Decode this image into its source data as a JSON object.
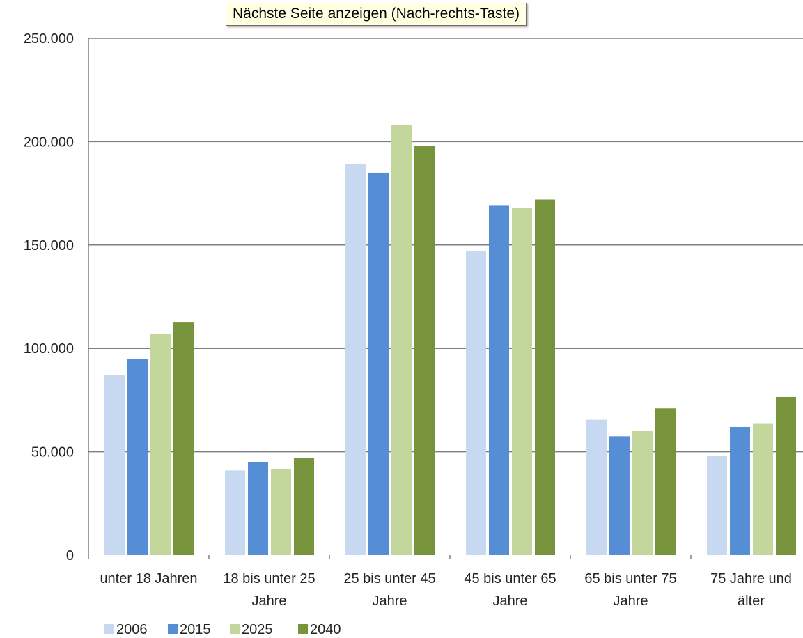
{
  "tooltip": {
    "text": "Nächste Seite anzeigen (Nach-rechts-Taste)"
  },
  "chart_data": {
    "type": "bar",
    "categories": [
      [
        "unter 18 Jahren"
      ],
      [
        "18 bis unter 25",
        "Jahre"
      ],
      [
        "25 bis unter 45",
        "Jahre"
      ],
      [
        "45 bis unter 65",
        "Jahre"
      ],
      [
        "65 bis unter 75",
        "Jahre"
      ],
      [
        "75 Jahre und",
        "älter"
      ]
    ],
    "series": [
      {
        "name": "2006",
        "color": "#c6d9f0",
        "values": [
          87000,
          41000,
          189000,
          147000,
          65500,
          48000
        ]
      },
      {
        "name": "2015",
        "color": "#558ed5",
        "values": [
          95000,
          45000,
          185000,
          169000,
          57500,
          62000
        ]
      },
      {
        "name": "2025",
        "color": "#c3d69b",
        "values": [
          107000,
          41500,
          208000,
          168000,
          60000,
          63500
        ]
      },
      {
        "name": "2040",
        "color": "#77933c",
        "values": [
          112500,
          47000,
          198000,
          172000,
          71000,
          76500
        ]
      }
    ],
    "ylim": [
      0,
      250000
    ],
    "yticks": [
      0,
      50000,
      100000,
      150000,
      200000,
      250000
    ],
    "ytick_labels": [
      "0",
      "50.000",
      "100.000",
      "150.000",
      "200.000",
      "250.000"
    ],
    "grid": "horizontal",
    "legend_position": "bottom-left",
    "gridline_color": "#7f7f7f"
  }
}
